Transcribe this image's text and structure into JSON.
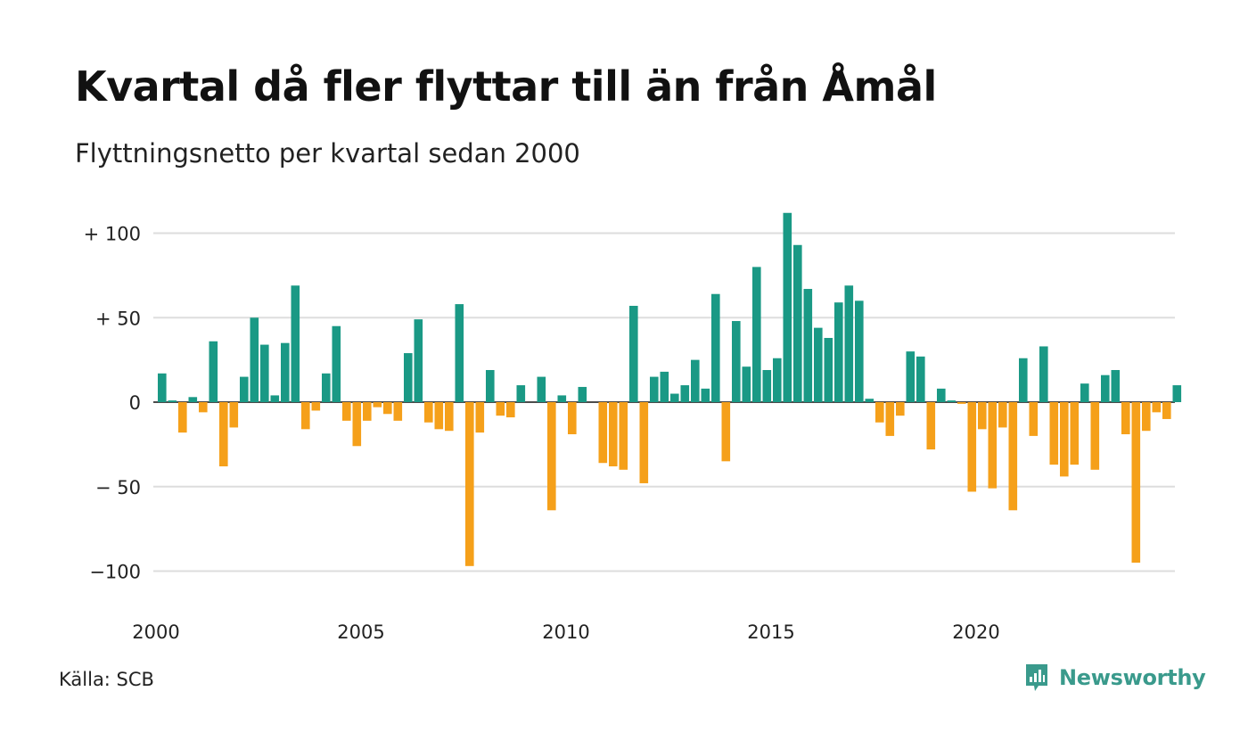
{
  "title": "Kvartal då fler flyttar till än från Åmål",
  "subtitle": "Flyttningsnetto per kvartal sedan 2000",
  "source": "Källa: SCB",
  "brand": "Newsworthy",
  "colors": {
    "positive": "#1a9985",
    "negative": "#f5a01a",
    "grid": "#dddddd",
    "brand": "#3a9a8c"
  },
  "chart_data": {
    "type": "bar",
    "ylim": [
      -110,
      115
    ],
    "yticks": [
      {
        "value": 100,
        "label": "+ 100"
      },
      {
        "value": 50,
        "label": "+  50"
      },
      {
        "value": 0,
        "label": "0"
      },
      {
        "value": -50,
        "label": "− 50"
      },
      {
        "value": -100,
        "label": "−100"
      }
    ],
    "xticks": [
      "2000",
      "2005",
      "2010",
      "2015",
      "2020"
    ],
    "start_year": 2000,
    "values": [
      17,
      1,
      -18,
      3,
      -6,
      36,
      -38,
      -15,
      15,
      50,
      34,
      4,
      35,
      69,
      -16,
      -5,
      17,
      45,
      -11,
      -26,
      -11,
      -3,
      -7,
      -11,
      29,
      49,
      -12,
      -16,
      -17,
      58,
      -97,
      -18,
      19,
      -8,
      -9,
      10,
      0,
      15,
      -64,
      4,
      -19,
      9,
      0,
      -36,
      -38,
      -40,
      57,
      -48,
      15,
      18,
      5,
      10,
      25,
      8,
      64,
      -35,
      48,
      21,
      80,
      19,
      26,
      112,
      93,
      67,
      44,
      38,
      59,
      69,
      60,
      2,
      -12,
      -20,
      -8,
      30,
      27,
      -28,
      8,
      1,
      -1,
      -53,
      -16,
      -51,
      -15,
      -64,
      26,
      -20,
      33,
      -37,
      -44,
      -37,
      11,
      -40,
      16,
      19,
      -19,
      -95,
      -17,
      -6,
      -10,
      10
    ]
  }
}
